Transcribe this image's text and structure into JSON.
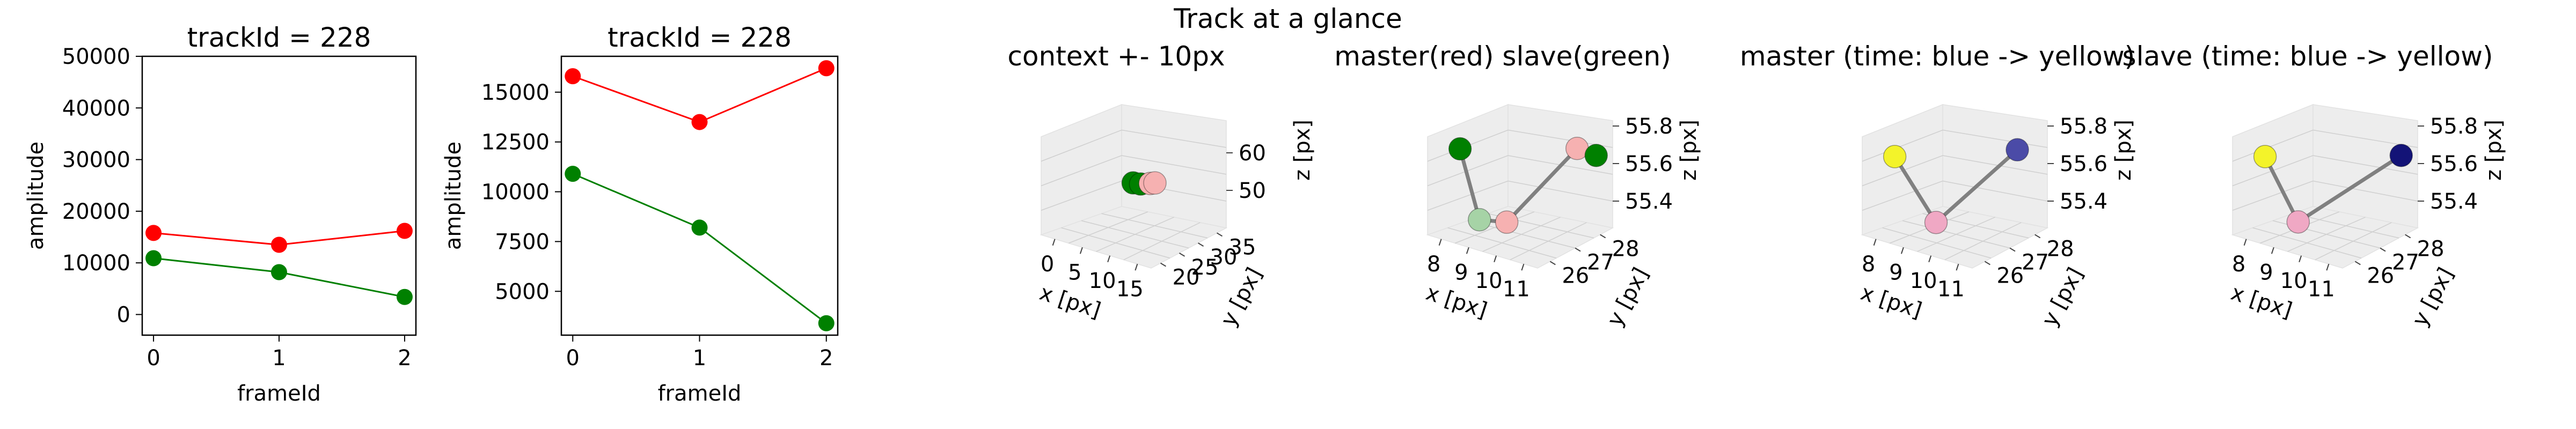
{
  "suptitle": "Track at a glance",
  "colors": {
    "red": "#ff0000",
    "green": "#008000",
    "pane": "#ededed",
    "grid": "#cfcfcf",
    "link": "#808080",
    "light_green": "#a6d3a6",
    "light_red": "#f6b1b1",
    "pink": "#f0a8c4",
    "yellow": "#f3f32a",
    "blue_mid": "#4b4ba7",
    "navy": "#131377"
  },
  "chart_data": [
    {
      "type": "line",
      "title": "trackId = 228",
      "xlabel": "frameId",
      "ylabel": "amplitude",
      "x": [
        0,
        1,
        2
      ],
      "xticks": [
        "0",
        "1",
        "2"
      ],
      "yticks": [
        "0",
        "10000",
        "20000",
        "30000",
        "40000",
        "50000"
      ],
      "xlim": [
        -0.09,
        2.09
      ],
      "ylim": [
        -4000,
        50000
      ],
      "series": [
        {
          "color": "red",
          "values": [
            15800,
            13500,
            16200
          ]
        },
        {
          "color": "green",
          "values": [
            10900,
            8200,
            3400
          ]
        }
      ]
    },
    {
      "type": "line",
      "title": "trackId = 228",
      "xlabel": "frameId",
      "ylabel": "amplitude",
      "x": [
        0,
        1,
        2
      ],
      "xticks": [
        "0",
        "1",
        "2"
      ],
      "yticks": [
        "5000",
        "7500",
        "10000",
        "12500",
        "15000"
      ],
      "xlim": [
        -0.09,
        2.09
      ],
      "ylim": [
        2800,
        16800
      ],
      "series": [
        {
          "color": "red",
          "values": [
            15800,
            13500,
            16200
          ]
        },
        {
          "color": "green",
          "values": [
            10900,
            8200,
            3400
          ]
        }
      ]
    },
    {
      "type": "scatter",
      "subtype": "3d",
      "title": "context +- 10px",
      "xlabel": "x [px]",
      "ylabel": "y [px]",
      "zlabel": "z [px]",
      "xticks": [
        "0",
        "5",
        "10",
        "15"
      ],
      "yticks": [
        "20",
        "25",
        "30",
        "35"
      ],
      "zticks": [
        "50",
        "60"
      ],
      "points": [
        {
          "x": 8.0,
          "y": 26.0,
          "z": 55.6,
          "color": "green"
        },
        {
          "x": 9.0,
          "y": 26.5,
          "z": 55.5,
          "color": "green"
        },
        {
          "x": 10.0,
          "y": 27.5,
          "z": 55.6,
          "color": "light_red"
        },
        {
          "x": 10.5,
          "y": 28.0,
          "z": 55.7,
          "color": "light_red"
        }
      ]
    },
    {
      "type": "scatter",
      "subtype": "3d",
      "title": "master(red) slave(green)",
      "xlabel": "x [px]",
      "ylabel": "y [px]",
      "zlabel": "z [px]",
      "xticks": [
        "8",
        "9",
        "10",
        "11"
      ],
      "yticks": [
        "26",
        "27",
        "28"
      ],
      "zticks": [
        "55.4",
        "55.6",
        "55.8"
      ],
      "points": [
        {
          "x": 8.0,
          "y": 26.2,
          "z": 55.8,
          "color": "green"
        },
        {
          "x": 8.9,
          "y": 26.0,
          "z": 55.4,
          "color": "light_green"
        },
        {
          "x": 9.6,
          "y": 26.3,
          "z": 55.4,
          "color": "light_red"
        },
        {
          "x": 10.5,
          "y": 28.0,
          "z": 55.8,
          "color": "light_red"
        },
        {
          "x": 10.9,
          "y": 28.3,
          "z": 55.75,
          "color": "green"
        }
      ]
    },
    {
      "type": "scatter",
      "subtype": "3d",
      "title": "master (time: blue -> yellow)",
      "xlabel": "x [px]",
      "ylabel": "y [px]",
      "zlabel": "z [px]",
      "xticks": [
        "8",
        "9",
        "10",
        "11"
      ],
      "yticks": [
        "26",
        "27",
        "28"
      ],
      "zticks": [
        "55.4",
        "55.6",
        "55.8"
      ],
      "points": [
        {
          "x": 8.0,
          "y": 26.2,
          "z": 55.75,
          "color": "yellow"
        },
        {
          "x": 9.5,
          "y": 26.2,
          "z": 55.4,
          "color": "pink"
        },
        {
          "x": 10.7,
          "y": 28.0,
          "z": 55.8,
          "color": "blue_mid"
        }
      ]
    },
    {
      "type": "scatter",
      "subtype": "3d",
      "title": "slave (time: blue -> yellow)",
      "xlabel": "x [px]",
      "ylabel": "y [px]",
      "zlabel": "z [px]",
      "xticks": [
        "8",
        "9",
        "10",
        "11"
      ],
      "yticks": [
        "26",
        "27",
        "28"
      ],
      "zticks": [
        "55.4",
        "55.6",
        "55.8"
      ],
      "points": [
        {
          "x": 8.0,
          "y": 26.2,
          "z": 55.75,
          "color": "yellow"
        },
        {
          "x": 9.3,
          "y": 26.1,
          "z": 55.4,
          "color": "pink"
        },
        {
          "x": 10.9,
          "y": 28.3,
          "z": 55.75,
          "color": "navy"
        }
      ]
    }
  ]
}
